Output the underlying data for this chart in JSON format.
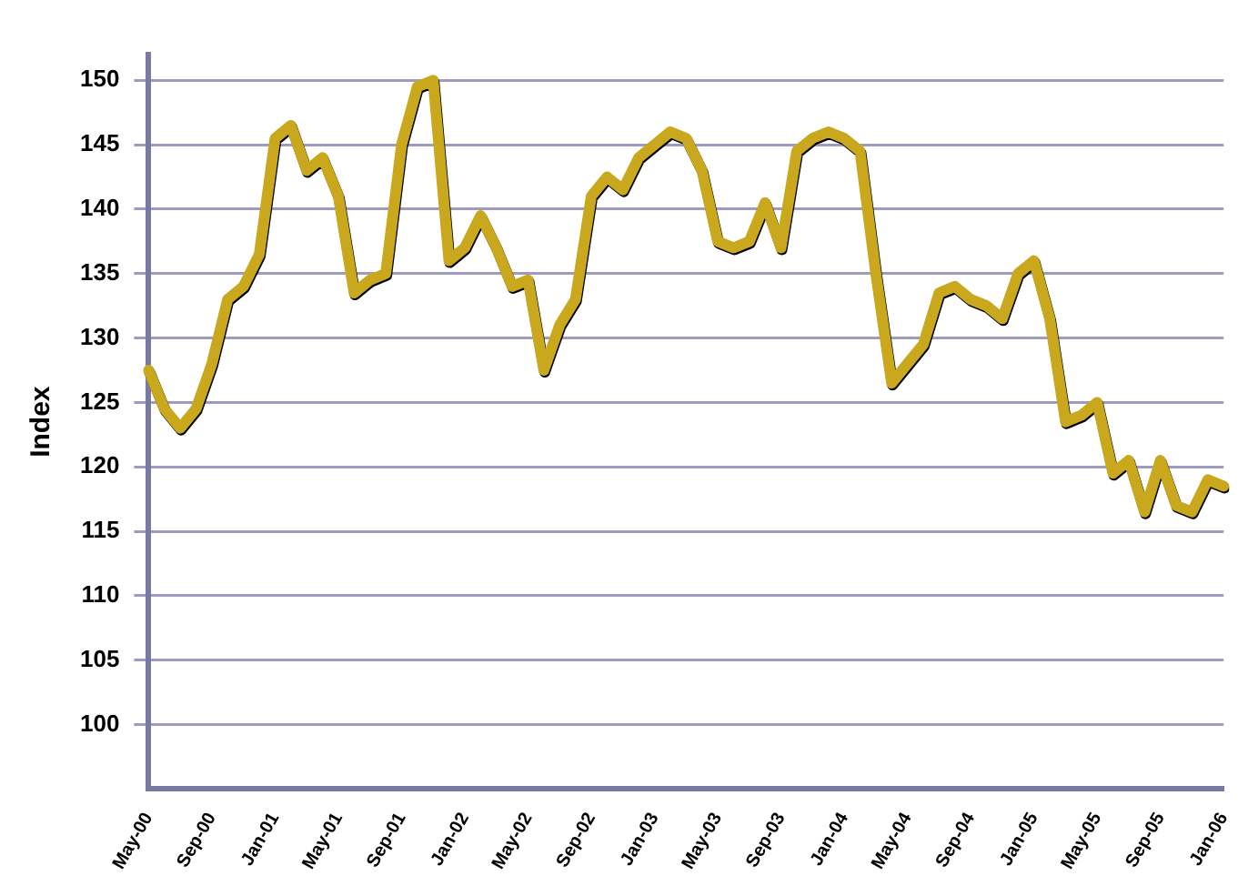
{
  "chart_data": {
    "type": "line",
    "ylabel": "Index",
    "categories": [
      "May-00",
      null,
      null,
      null,
      "Sep-00",
      null,
      null,
      null,
      "Jan-01",
      null,
      null,
      null,
      "May-01",
      null,
      null,
      null,
      "Sep-01",
      null,
      null,
      null,
      "Jan-02",
      null,
      null,
      null,
      "May-02",
      null,
      null,
      null,
      "Sep-02",
      null,
      null,
      null,
      "Jan-03",
      null,
      null,
      null,
      "May-03",
      null,
      null,
      null,
      "Sep-03",
      null,
      null,
      null,
      "Jan-04",
      null,
      null,
      null,
      "May-04",
      null,
      null,
      null,
      "Sep-04",
      null,
      null,
      null,
      "Jan-05",
      null,
      null,
      null,
      "May-05",
      null,
      null,
      null,
      "Sep-05",
      null,
      null,
      null,
      "Jan-06"
    ],
    "series": [
      {
        "color": "#c9a81e",
        "values": [
          127.5,
          124.5,
          123,
          124.5,
          128,
          133,
          134,
          136.5,
          145.5,
          146.5,
          143,
          144,
          141,
          133.5,
          134.5,
          135,
          145,
          149.5,
          150,
          136,
          137,
          139.5,
          137,
          134,
          134.5,
          127.5,
          131,
          133,
          141,
          142.5,
          141.5,
          144,
          145,
          146,
          145.5,
          143,
          137.5,
          137,
          137.5,
          140.5,
          137,
          144.5,
          145.5,
          146,
          145.5,
          144.5,
          135,
          126.5,
          128,
          129.5,
          133.5,
          134,
          133,
          132.5,
          131.5,
          135,
          136,
          131.5,
          123.5,
          124,
          125,
          119.5,
          120.5,
          116.5,
          120.5,
          117,
          116.5,
          119,
          118.5
        ]
      }
    ],
    "ylim": [
      95,
      152
    ],
    "yticks": [
      100,
      105,
      110,
      115,
      120,
      125,
      130,
      135,
      140,
      145,
      150
    ],
    "grid": "y",
    "legend": false,
    "marker": "none",
    "line_style": "solid"
  }
}
